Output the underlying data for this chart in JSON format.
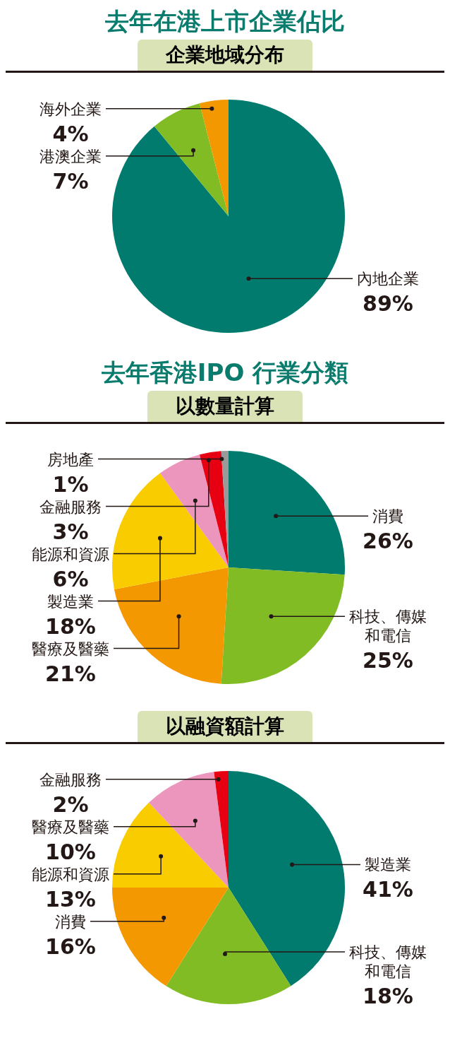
{
  "chart_data": [
    {
      "type": "pie",
      "title": "去年在港上市企業佔比",
      "subtitle": "企業地域分布",
      "categories": [
        "內地企業",
        "港澳企業",
        "海外企業"
      ],
      "values": [
        89,
        7,
        4
      ],
      "colors": [
        "#007b6e",
        "#82bc24",
        "#f39800"
      ],
      "value_labels": [
        "89%",
        "7%",
        "4%"
      ]
    },
    {
      "type": "pie",
      "title": "去年香港IPO 行業分類",
      "subtitle": "以數量計算",
      "categories": [
        "消費",
        "科技、傳媒和電信",
        "醫療及醫藥",
        "製造業",
        "能源和資源",
        "金融服務",
        "房地產"
      ],
      "values": [
        26,
        25,
        21,
        18,
        6,
        3,
        1
      ],
      "colors": [
        "#007b6e",
        "#82bc24",
        "#f39800",
        "#f9cc00",
        "#ec96bd",
        "#e60012",
        "#9a9a9a"
      ],
      "value_labels": [
        "26%",
        "25%",
        "21%",
        "18%",
        "6%",
        "3%",
        "1%"
      ]
    },
    {
      "type": "pie",
      "subtitle": "以融資額計算",
      "categories": [
        "製造業",
        "科技、傳媒和電信",
        "消費",
        "能源和資源",
        "醫療及醫藥",
        "金融服務"
      ],
      "values": [
        41,
        18,
        16,
        13,
        10,
        2
      ],
      "colors": [
        "#007b6e",
        "#82bc24",
        "#f39800",
        "#f9cc00",
        "#ec96bd",
        "#e60012"
      ],
      "value_labels": [
        "41%",
        "18%",
        "16%",
        "13%",
        "10%",
        "2%"
      ]
    }
  ]
}
